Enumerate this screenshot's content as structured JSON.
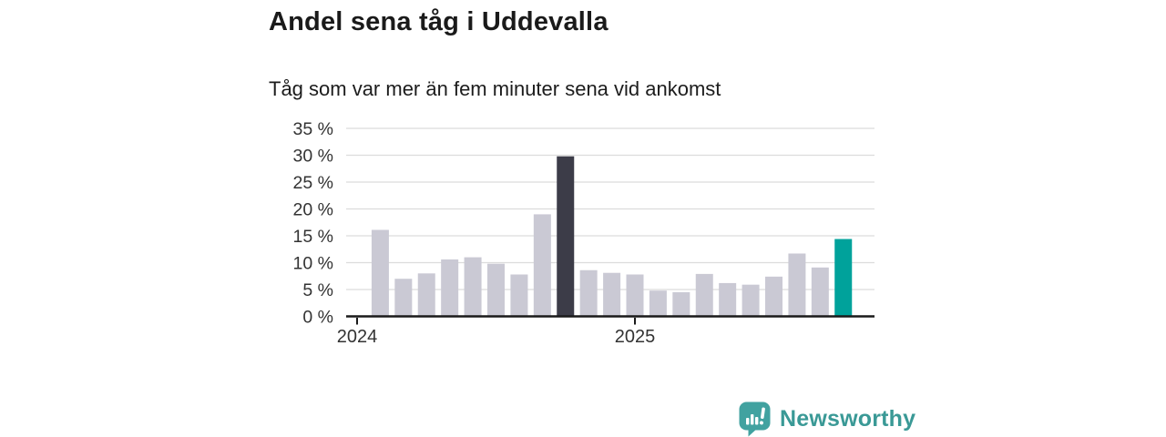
{
  "header": {
    "title": "Andel sena tåg i Uddevalla",
    "subtitle": "Tåg som var mer än fem minuter sena vid ankomst"
  },
  "chart_data": {
    "type": "bar",
    "title": "Andel sena tåg i Uddevalla",
    "subtitle": "Tåg som var mer än fem minuter sena vid ankomst",
    "unit": "percent",
    "categories": [
      "2024-02",
      "2024-03",
      "2024-04",
      "2024-05",
      "2024-06",
      "2024-07",
      "2024-08",
      "2024-09",
      "2024-10",
      "2024-11",
      "2024-12",
      "2025-01",
      "2025-02",
      "2025-03",
      "2025-04",
      "2025-05",
      "2025-06",
      "2025-07",
      "2025-08",
      "2025-09",
      "2025-10"
    ],
    "values": [
      16.1,
      7.0,
      8.0,
      10.6,
      11.0,
      9.8,
      7.8,
      19.0,
      29.8,
      8.6,
      8.1,
      7.8,
      4.8,
      4.5,
      7.9,
      6.2,
      5.9,
      7.4,
      11.7,
      9.1,
      14.4
    ],
    "highlight_dark_index": 8,
    "highlight_current_index": 20,
    "ylim": [
      0,
      35
    ],
    "grid": true,
    "legend": false,
    "y_axis": [
      {
        "value": 35,
        "label": "35 %"
      },
      {
        "value": 30,
        "label": "30 %"
      },
      {
        "value": 25,
        "label": "25 %"
      },
      {
        "value": 20,
        "label": "20 %"
      },
      {
        "value": 15,
        "label": "15 %"
      },
      {
        "value": 10,
        "label": "10 %"
      },
      {
        "value": 5,
        "label": "5 %"
      },
      {
        "value": 0,
        "label": "0 %"
      }
    ],
    "x_axis": [
      {
        "label": "2024",
        "month_offset": 0
      },
      {
        "label": "2025",
        "month_offset": 12
      }
    ],
    "colors": {
      "bar_default": "#cac9d4",
      "bar_dark": "#3c3c48",
      "bar_current": "#00a29b",
      "grid": "#dcdcdc",
      "axis": "#1a1a1a",
      "tick_label": "#333333"
    }
  },
  "footer": {
    "brand": "Newsworthy",
    "brand_color": "#3a9996",
    "logo_color": "#41a2a0"
  }
}
